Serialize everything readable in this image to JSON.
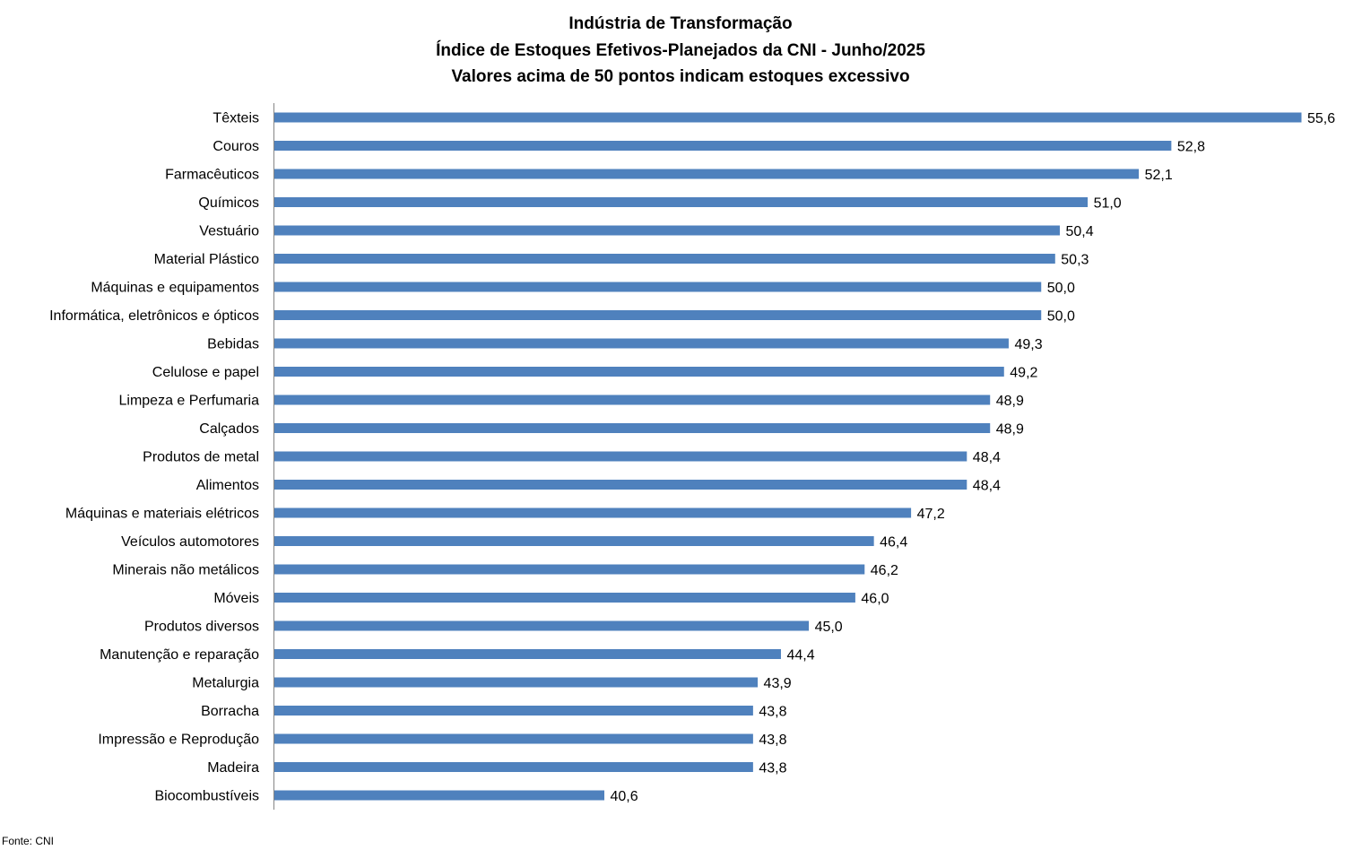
{
  "chart_data": {
    "type": "bar",
    "orientation": "horizontal",
    "title": "Indústria de Transformação",
    "subtitle": "Índice de Estoques Efetivos-Planejados da CNI - Junho/2025",
    "subtitle2": "Valores acima de 50 pontos indicam estoques excessivo",
    "categories": [
      "Têxteis",
      "Couros",
      "Farmacêuticos",
      "Químicos",
      "Vestuário",
      "Material Plástico",
      "Máquinas e equipamentos",
      "Informática, eletrônicos e ópticos",
      "Bebidas",
      "Celulose e papel",
      "Limpeza e Perfumaria",
      "Calçados",
      "Produtos de metal",
      "Alimentos",
      "Máquinas e materiais elétricos",
      "Veículos automotores",
      "Minerais não metálicos",
      "Móveis",
      "Produtos diversos",
      "Manutenção e reparação",
      "Metalurgia",
      "Borracha",
      "Impressão e Reprodução",
      "Madeira",
      "Biocombustíveis"
    ],
    "values": [
      55.6,
      52.8,
      52.1,
      51.0,
      50.4,
      50.3,
      50.0,
      50.0,
      49.3,
      49.2,
      48.9,
      48.9,
      48.4,
      48.4,
      47.2,
      46.4,
      46.2,
      46.0,
      45.0,
      44.4,
      43.9,
      43.8,
      43.8,
      43.8,
      40.6
    ],
    "value_labels": [
      "55,6",
      "52,8",
      "52,1",
      "51,0",
      "50,4",
      "50,3",
      "50,0",
      "50,0",
      "49,3",
      "49,2",
      "48,9",
      "48,9",
      "48,4",
      "48,4",
      "47,2",
      "46,4",
      "46,2",
      "46,0",
      "45,0",
      "44,4",
      "43,9",
      "43,8",
      "43,8",
      "43,8",
      "40,6"
    ],
    "xlim": [
      33.5,
      55.6
    ],
    "grid": false,
    "legend": "none",
    "bar_color": "#4f81bd",
    "axis_color": "#868686",
    "source": "Fonte: CNI"
  }
}
